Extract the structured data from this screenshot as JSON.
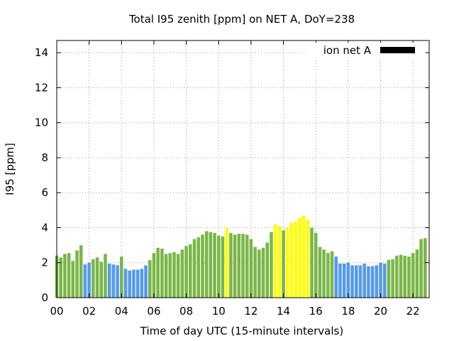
{
  "chart_data": {
    "type": "bar",
    "title": "Total I95 zenith [ppm] on NET A, DoY=238",
    "xlabel": "Time of day UTC (15-minute intervals)",
    "ylabel": "I95 [ppm]",
    "xlim": [
      0,
      23
    ],
    "ylim": [
      0,
      14.7
    ],
    "x_ticks": [
      "00",
      "02",
      "04",
      "06",
      "08",
      "10",
      "12",
      "14",
      "16",
      "18",
      "20",
      "22"
    ],
    "x_tick_values": [
      0,
      2,
      4,
      6,
      8,
      10,
      12,
      14,
      16,
      18,
      20,
      22
    ],
    "y_ticks": [
      "0",
      "2",
      "4",
      "6",
      "8",
      "10",
      "12",
      "14"
    ],
    "y_tick_values": [
      0,
      2,
      4,
      6,
      8,
      10,
      12,
      14
    ],
    "grid": true,
    "legend": {
      "label": "ion net A",
      "color": "#000000",
      "position": "top-right"
    },
    "bar_step_hours": 0.25,
    "bar_width_hours": 0.2,
    "colors": {
      "green": "#7ab648",
      "blue": "#5599ee",
      "yellow": "#ffff00"
    },
    "values": [
      2.4,
      2.3,
      2.5,
      2.55,
      2.1,
      2.7,
      3.0,
      1.9,
      2.0,
      2.2,
      2.3,
      2.05,
      2.5,
      1.95,
      1.9,
      1.85,
      2.35,
      1.65,
      1.55,
      1.6,
      1.6,
      1.65,
      1.85,
      2.15,
      2.55,
      2.85,
      2.8,
      2.5,
      2.55,
      2.6,
      2.5,
      2.75,
      2.95,
      3.05,
      3.35,
      3.45,
      3.6,
      3.8,
      3.75,
      3.7,
      3.55,
      3.5,
      4.0,
      3.7,
      3.6,
      3.65,
      3.65,
      3.6,
      3.35,
      2.9,
      2.75,
      2.85,
      3.15,
      3.75,
      4.2,
      4.1,
      3.85,
      4.0,
      4.3,
      4.35,
      4.55,
      4.7,
      4.45,
      4.0,
      3.7,
      2.9,
      2.75,
      2.55,
      2.65,
      2.35,
      1.95,
      1.95,
      2.0,
      1.85,
      1.85,
      1.85,
      1.95,
      1.8,
      1.8,
      1.85,
      2.0,
      1.95,
      2.15,
      2.2,
      2.4,
      2.45,
      2.4,
      2.35,
      2.55,
      2.75,
      3.35,
      3.4
    ],
    "bar_colors": [
      "green",
      "green",
      "green",
      "green",
      "green",
      "green",
      "green",
      "blue",
      "blue",
      "green",
      "green",
      "green",
      "green",
      "blue",
      "blue",
      "blue",
      "green",
      "blue",
      "blue",
      "blue",
      "blue",
      "blue",
      "blue",
      "green",
      "green",
      "green",
      "green",
      "green",
      "green",
      "green",
      "green",
      "green",
      "green",
      "green",
      "green",
      "green",
      "green",
      "green",
      "green",
      "green",
      "green",
      "green",
      "yellow",
      "green",
      "green",
      "green",
      "green",
      "green",
      "green",
      "green",
      "green",
      "green",
      "green",
      "green",
      "yellow",
      "yellow",
      "green",
      "yellow",
      "yellow",
      "yellow",
      "yellow",
      "yellow",
      "yellow",
      "green",
      "green",
      "green",
      "green",
      "green",
      "green",
      "blue",
      "blue",
      "blue",
      "blue",
      "blue",
      "blue",
      "blue",
      "blue",
      "blue",
      "blue",
      "blue",
      "blue",
      "blue",
      "green",
      "green",
      "green",
      "green",
      "green",
      "green",
      "green",
      "green",
      "green",
      "green"
    ]
  }
}
